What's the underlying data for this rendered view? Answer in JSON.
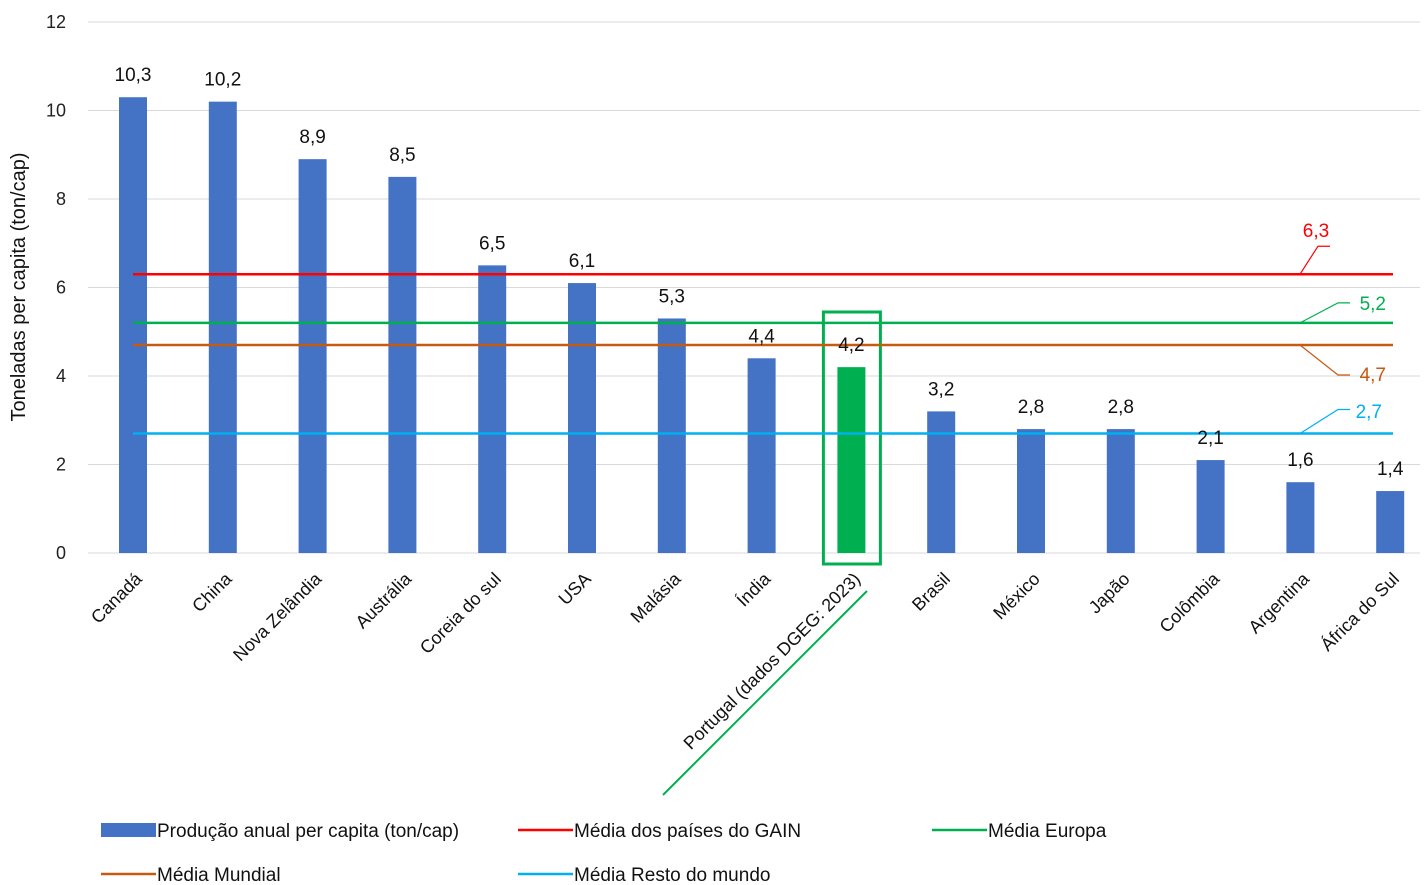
{
  "chart_data": {
    "type": "bar",
    "ylabel": "Toneladas per capita (ton/cap)",
    "ylim": [
      0,
      12
    ],
    "yticks": [
      "0",
      "2",
      "4",
      "6",
      "8",
      "10",
      "12"
    ],
    "grid": true,
    "categories": [
      "Canadá",
      "China",
      "Nova Zelândia",
      "Austrália",
      "Coreia do sul",
      "USA",
      "Malásia",
      "Índia",
      "Portugal (dados DGEG: 2023)",
      "Brasil",
      "México",
      "Japão",
      "Colômbia",
      "Argentina",
      "África do Sul"
    ],
    "series": [
      {
        "name": "Produção anual per capita (ton/cap)",
        "values": [
          10.3,
          10.2,
          8.9,
          8.5,
          6.5,
          6.1,
          5.3,
          4.4,
          4.2,
          3.2,
          2.8,
          2.8,
          2.1,
          1.6,
          1.4
        ],
        "labels": [
          "10,3",
          "10,2",
          "8,9",
          "8,5",
          "6,5",
          "6,1",
          "5,3",
          "4,4",
          "4,2",
          "3,2",
          "2,8",
          "2,8",
          "2,1",
          "1,6",
          "1,4"
        ],
        "color": "#4472C4",
        "highlight_index": 8,
        "highlight_color": "#00B050"
      }
    ],
    "reference_lines": [
      {
        "name": "Média dos países do GAIN",
        "value": 6.3,
        "label": "6,3",
        "color": "#FF0000"
      },
      {
        "name": "Média Europa",
        "value": 5.2,
        "label": "5,2",
        "color": "#00B050"
      },
      {
        "name": "Média Mundial",
        "value": 4.7,
        "label": "4,7",
        "color": "#C55A11"
      },
      {
        "name": "Média Resto do mundo",
        "value": 2.7,
        "label": "2,7",
        "color": "#00B0F0"
      }
    ],
    "legend_position": "bottom"
  }
}
